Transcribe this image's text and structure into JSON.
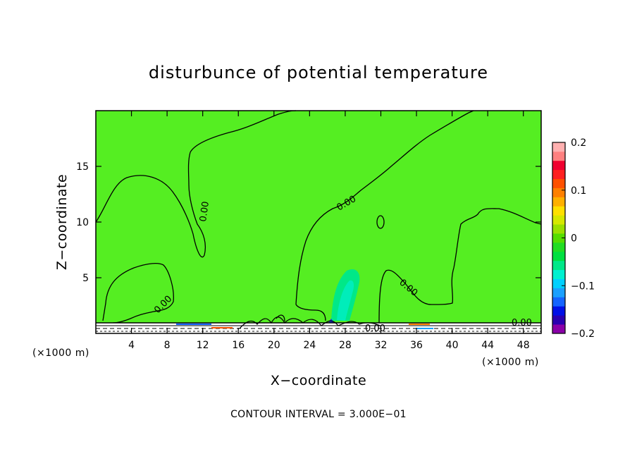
{
  "chart_data": {
    "type": "heatmap",
    "title": "disturbunce of potential temperature",
    "xlabel": "X−coordinate",
    "ylabel": "Z−coordinate",
    "x_unit_label": "(×1000 m)",
    "x_unit_label_right": "(×1000 m)",
    "xlim": [
      0,
      50
    ],
    "ylim": [
      0,
      20
    ],
    "x_ticks": [
      4,
      8,
      12,
      16,
      20,
      24,
      28,
      32,
      36,
      40,
      44,
      48
    ],
    "y_ticks": [
      5,
      10,
      15
    ],
    "colorbar": {
      "range": [
        -0.2,
        0.2
      ],
      "tick_values": [
        0.2,
        0.1,
        0,
        -0.1,
        -0.2
      ],
      "tick_labels": [
        "0.2",
        "0.1",
        "0",
        "−0.1",
        "−0.2"
      ],
      "colors": [
        "#8a00a8",
        "#2a00b0",
        "#0010e6",
        "#1464ff",
        "#1aa0ff",
        "#00d0ff",
        "#00f0d0",
        "#00e888",
        "#00e040",
        "#22dd22",
        "#55dd00",
        "#9be000",
        "#d6e800",
        "#ffe000",
        "#ffb000",
        "#ff8000",
        "#ff5000",
        "#ff2020",
        "#f00030",
        "#ff8080",
        "#ffb0b0"
      ]
    },
    "background_value": 0,
    "contour_interval_text": "CONTOUR INTERVAL = 3.000E−01",
    "contour_labels": [
      "0.00",
      "0.00",
      "0.00",
      "0.00",
      "0.00",
      "0.00",
      "0.00"
    ],
    "grid": false,
    "legend_placement": "right"
  }
}
